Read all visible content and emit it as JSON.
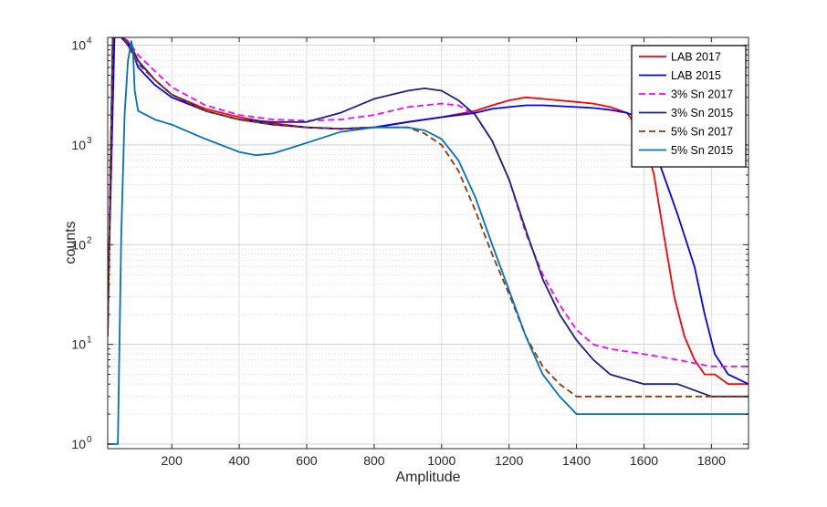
{
  "chart_data": {
    "type": "line",
    "title": "",
    "xlabel": "Amplitude",
    "ylabel": "counts",
    "xscale": "linear",
    "yscale": "log",
    "xlim": [
      10,
      1910
    ],
    "ylim": [
      0.9,
      12000
    ],
    "xticks": [
      200,
      400,
      600,
      800,
      1000,
      1200,
      1400,
      1600,
      1800
    ],
    "xtick_labels": [
      "200",
      "400",
      "600",
      "800",
      "1000",
      "1200",
      "1400",
      "1600",
      "1800"
    ],
    "yticks": [
      1,
      10,
      100,
      1000,
      10000
    ],
    "ytick_labels": [
      {
        "base": "10",
        "exp": "0"
      },
      {
        "base": "10",
        "exp": "1"
      },
      {
        "base": "10",
        "exp": "2"
      },
      {
        "base": "10",
        "exp": "3"
      },
      {
        "base": "10",
        "exp": "4"
      }
    ],
    "grid": true,
    "legend_position": "top-right",
    "series": [
      {
        "name": "LAB 2017",
        "color": "#ff0000",
        "style": "solid",
        "x": [
          10,
          25,
          40,
          55,
          70,
          85,
          100,
          150,
          200,
          300,
          400,
          500,
          600,
          700,
          800,
          900,
          1000,
          1100,
          1150,
          1200,
          1250,
          1300,
          1350,
          1400,
          1450,
          1500,
          1550,
          1600,
          1630,
          1660,
          1690,
          1720,
          1750,
          1780,
          1810,
          1850,
          1910
        ],
        "y": [
          12,
          12000,
          12000,
          12000,
          11000,
          9000,
          7000,
          4500,
          3200,
          2300,
          1900,
          1650,
          1500,
          1450,
          1500,
          1700,
          1900,
          2200,
          2500,
          2800,
          3000,
          2900,
          2800,
          2700,
          2600,
          2400,
          2100,
          1200,
          500,
          120,
          30,
          12,
          7,
          5,
          5,
          4,
          4
        ]
      },
      {
        "name": "LAB 2015",
        "color": "#0000ff",
        "style": "solid",
        "x": [
          10,
          30,
          40,
          50,
          60,
          70,
          80,
          90,
          100,
          150,
          200,
          300,
          400,
          500,
          600,
          700,
          800,
          900,
          1000,
          1100,
          1150,
          1200,
          1250,
          1300,
          1350,
          1400,
          1450,
          1500,
          1550,
          1600,
          1650,
          1700,
          1750,
          1780,
          1810,
          1850,
          1910
        ],
        "y": [
          20,
          12000,
          12000,
          12000,
          11000,
          10000,
          9000,
          7500,
          6000,
          4000,
          3000,
          2200,
          1800,
          1600,
          1500,
          1450,
          1500,
          1700,
          1900,
          2100,
          2300,
          2400,
          2500,
          2500,
          2450,
          2400,
          2350,
          2250,
          2100,
          1800,
          600,
          200,
          60,
          20,
          8,
          5,
          4
        ]
      },
      {
        "name": "3% Sn 2017",
        "color": "#ff00ff",
        "style": "dashed",
        "x": [
          10,
          25,
          40,
          55,
          70,
          85,
          100,
          150,
          200,
          300,
          400,
          500,
          600,
          700,
          800,
          900,
          1000,
          1050,
          1100,
          1150,
          1200,
          1250,
          1300,
          1350,
          1400,
          1450,
          1500,
          1600,
          1700,
          1800,
          1910
        ],
        "y": [
          12,
          12000,
          12000,
          12000,
          11000,
          9500,
          8000,
          5500,
          3800,
          2500,
          2000,
          1800,
          1750,
          1800,
          2000,
          2400,
          2600,
          2500,
          2000,
          1100,
          450,
          130,
          50,
          25,
          14,
          10,
          9,
          8,
          7,
          6,
          6
        ]
      },
      {
        "name": "3% Sn 2015",
        "color": "#1a237e",
        "style": "solid",
        "x": [
          10,
          25,
          40,
          55,
          70,
          85,
          100,
          150,
          200,
          300,
          400,
          500,
          600,
          700,
          800,
          900,
          950,
          1000,
          1050,
          1100,
          1150,
          1200,
          1250,
          1300,
          1350,
          1400,
          1450,
          1500,
          1600,
          1700,
          1800,
          1910
        ],
        "y": [
          12,
          12000,
          12000,
          12000,
          10500,
          9000,
          7000,
          4500,
          3200,
          2200,
          1800,
          1700,
          1700,
          2100,
          2900,
          3500,
          3700,
          3500,
          2800,
          2000,
          1100,
          450,
          140,
          45,
          20,
          11,
          7,
          5,
          4,
          4,
          3,
          3
        ]
      },
      {
        "name": "5% Sn 2017",
        "color": "#993300",
        "style": "dashed",
        "x": [
          10,
          25,
          40,
          55,
          70,
          85,
          100,
          150,
          200,
          300,
          400,
          500,
          600,
          700,
          800,
          900,
          950,
          1000,
          1050,
          1100,
          1150,
          1200,
          1250,
          1300,
          1350,
          1400,
          1500,
          1600,
          1700,
          1800,
          1910
        ],
        "y": [
          12,
          12000,
          12000,
          12000,
          10000,
          8000,
          6500,
          4500,
          3200,
          2200,
          1800,
          1600,
          1500,
          1450,
          1500,
          1500,
          1300,
          1000,
          550,
          220,
          80,
          32,
          12,
          6,
          4,
          3,
          3,
          3,
          3,
          3,
          3
        ]
      },
      {
        "name": "5% Sn 2015",
        "color": "#0072bd",
        "style": "solid",
        "x": [
          10,
          40,
          50,
          60,
          70,
          80,
          85,
          90,
          100,
          150,
          200,
          300,
          400,
          450,
          500,
          600,
          700,
          800,
          900,
          950,
          1000,
          1050,
          1100,
          1150,
          1200,
          1250,
          1300,
          1350,
          1400,
          1500,
          1600,
          1700,
          1800,
          1910
        ],
        "y": [
          1,
          1,
          120,
          2000,
          7000,
          11000,
          9000,
          3500,
          2200,
          1800,
          1600,
          1150,
          850,
          790,
          820,
          1050,
          1350,
          1500,
          1500,
          1400,
          1150,
          700,
          300,
          100,
          35,
          12,
          5,
          3,
          2,
          2,
          2,
          2,
          2,
          2
        ]
      }
    ]
  }
}
